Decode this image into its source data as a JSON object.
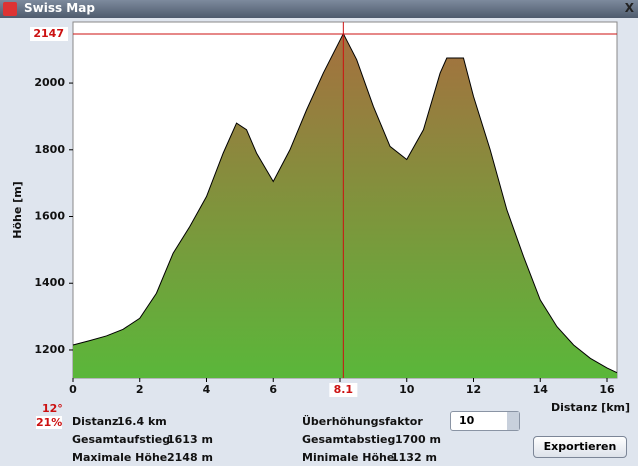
{
  "window": {
    "title": "Swiss Map",
    "close": "X"
  },
  "chart_data": {
    "type": "area",
    "x_label": "Distanz [km]",
    "y_label": "Höhe [m]",
    "x": [
      0,
      0.5,
      1,
      1.5,
      2,
      2.5,
      3,
      3.5,
      4,
      4.5,
      4.9,
      5.2,
      5.5,
      6,
      6.5,
      7,
      7.5,
      8.1,
      8.5,
      9,
      9.5,
      10,
      10.5,
      11,
      11.2,
      11.7,
      12,
      12.5,
      13,
      13.5,
      14,
      14.5,
      15,
      15.5,
      16,
      16.3
    ],
    "values": [
      1215,
      1228,
      1242,
      1262,
      1295,
      1370,
      1490,
      1570,
      1660,
      1790,
      1880,
      1860,
      1790,
      1705,
      1800,
      1920,
      2030,
      2148,
      2070,
      1930,
      1810,
      1771,
      1860,
      2030,
      2075,
      2075,
      1960,
      1800,
      1620,
      1480,
      1350,
      1270,
      1215,
      1175,
      1146,
      1132
    ],
    "color_top": "#a5703f",
    "color_bottom": "#5ab73a",
    "xlim": [
      0,
      16.3
    ],
    "ylim": [
      1116,
      2183
    ],
    "xticks": [
      0,
      2,
      4,
      6,
      8,
      10,
      12,
      14,
      16
    ],
    "yticks": [
      1200,
      1400,
      1600,
      1800,
      2000
    ],
    "cursor": {
      "x": 8.1,
      "y": 2147,
      "color": "#cc1111"
    }
  },
  "slope": {
    "angle": "12°",
    "percent": "21%"
  },
  "stats": {
    "left": [
      [
        "Distanz",
        "16.4 km"
      ],
      [
        "Gesamtaufstieg",
        "1613 m"
      ],
      [
        "Maximale Höhe",
        "2148 m"
      ]
    ],
    "right": [
      [
        "Überhöhungsfaktor",
        "10"
      ],
      [
        "Gesamtabstieg",
        "1700 m"
      ],
      [
        "Minimale Höhe",
        "1132 m"
      ]
    ]
  },
  "button": "Exportieren"
}
